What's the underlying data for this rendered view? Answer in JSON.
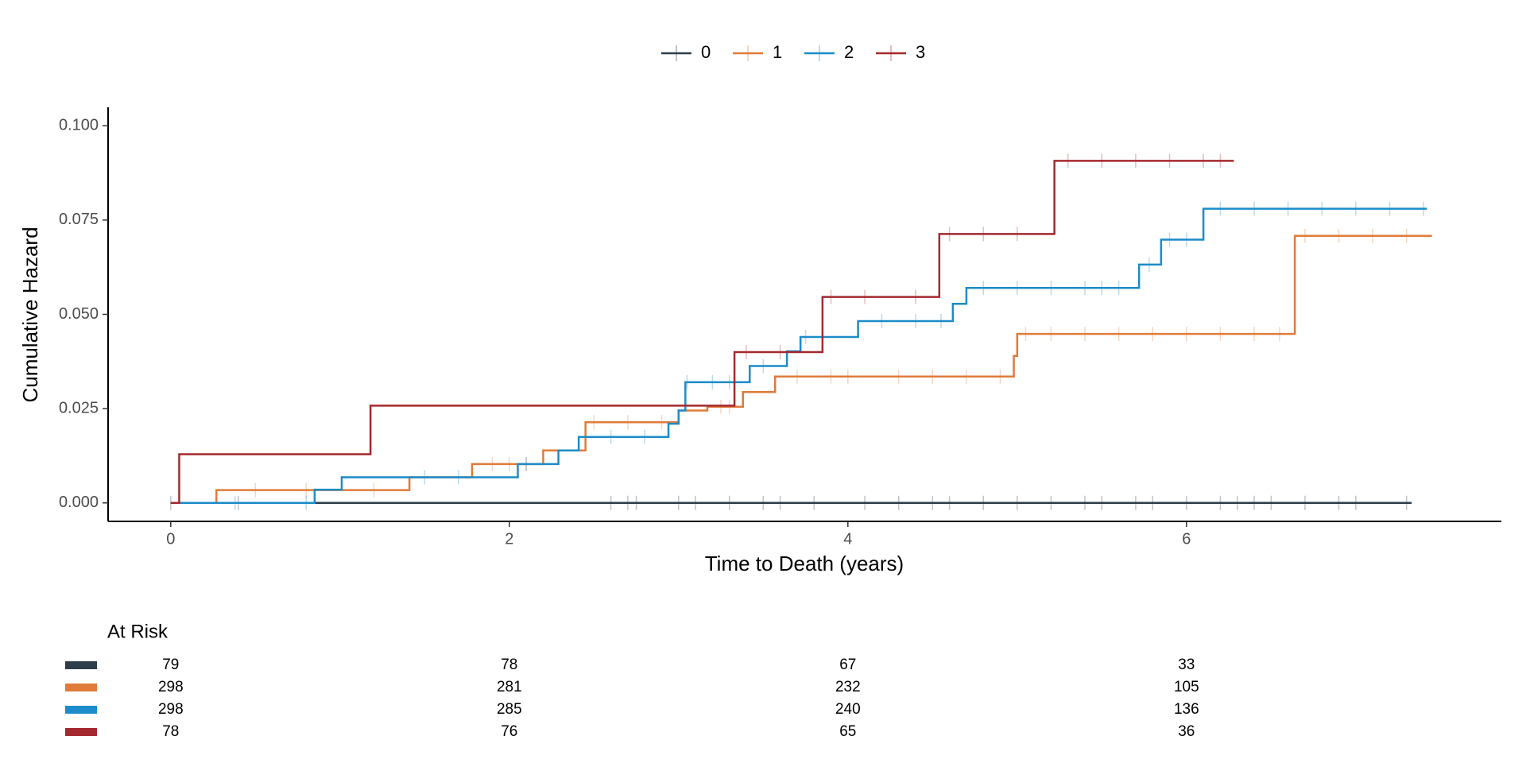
{
  "chart_data": {
    "type": "step",
    "xlabel": "Time to Death (years)",
    "ylabel": "Cumulative Hazard",
    "xlim": [
      -0.37,
      7.86
    ],
    "ylim": [
      -0.0049,
      0.1049
    ],
    "xticks": [
      0,
      2,
      4,
      6
    ],
    "yticks": [
      {
        "value": 0,
        "label": "0.000"
      },
      {
        "value": 0.025,
        "label": "0.025"
      },
      {
        "value": 0.05,
        "label": "0.050"
      },
      {
        "value": 0.075,
        "label": "0.075"
      },
      {
        "value": 0.1,
        "label": "0.100"
      }
    ],
    "legend_position": "top",
    "risk_title": "At Risk",
    "series": [
      {
        "name": "0",
        "color": "#2d3e4a",
        "x": [
          0,
          7.33
        ],
        "values": [
          0,
          0
        ],
        "censored": [
          0,
          0.4,
          2.6,
          2.7,
          2.75,
          3.0,
          3.1,
          3.3,
          3.5,
          3.6,
          3.8,
          4.1,
          4.3,
          4.5,
          4.6,
          4.8,
          5.0,
          5.2,
          5.4,
          5.5,
          5.7,
          5.8,
          6.0,
          6.2,
          6.3,
          6.4,
          6.5,
          6.7,
          6.9,
          7.0,
          7.3
        ],
        "at_risk": [
          79,
          78,
          67,
          33
        ]
      },
      {
        "name": "1",
        "color": "#e07b39",
        "x": [
          0,
          0.27,
          1.41,
          1.78,
          2.2,
          2.45,
          3.0,
          3.17,
          3.38,
          3.57,
          4.98,
          5.0,
          6.64,
          7.45
        ],
        "values": [
          0,
          0.0034,
          0.0068,
          0.0103,
          0.0139,
          0.0214,
          0.0245,
          0.0255,
          0.0294,
          0.0335,
          0.039,
          0.0448,
          0.0708,
          0.0708
        ],
        "censored": [
          0.5,
          0.8,
          1.2,
          1.9,
          2.0,
          2.1,
          2.5,
          2.7,
          2.9,
          3.25,
          3.3,
          3.7,
          3.9,
          4.0,
          4.3,
          4.5,
          4.7,
          4.9,
          5.05,
          5.2,
          5.4,
          5.6,
          5.8,
          6.0,
          6.2,
          6.4,
          6.55,
          6.7,
          6.9,
          7.1,
          7.3
        ],
        "at_risk": [
          298,
          281,
          232,
          105
        ]
      },
      {
        "name": "2",
        "color": "#1b8cc9",
        "x": [
          0,
          0.85,
          1.01,
          2.05,
          2.29,
          2.41,
          2.94,
          3.0,
          3.04,
          3.42,
          3.64,
          3.72,
          4.06,
          4.62,
          4.7,
          5.72,
          5.85,
          6.1,
          7.42
        ],
        "values": [
          0,
          0.0035,
          0.0068,
          0.0103,
          0.0139,
          0.0175,
          0.021,
          0.0245,
          0.032,
          0.0363,
          0.0402,
          0.044,
          0.0482,
          0.0528,
          0.057,
          0.0632,
          0.0698,
          0.078,
          0.078
        ],
        "censored": [
          0.38,
          0.8,
          1.5,
          1.7,
          2.1,
          2.6,
          2.8,
          3.05,
          3.2,
          3.3,
          3.5,
          3.75,
          4.2,
          4.4,
          4.55,
          4.8,
          5.0,
          5.2,
          5.4,
          5.5,
          5.6,
          5.78,
          5.9,
          6.0,
          6.2,
          6.4,
          6.6,
          6.8,
          7.0,
          7.2,
          7.4
        ],
        "at_risk": [
          298,
          285,
          240,
          136
        ]
      },
      {
        "name": "3",
        "color": "#a4292e",
        "x": [
          0,
          0.05,
          1.18,
          3.33,
          3.85,
          4.54,
          5.22,
          6.28
        ],
        "values": [
          0,
          0.0129,
          0.0258,
          0.04,
          0.0546,
          0.0713,
          0.0907,
          0.0907
        ],
        "censored": [
          3.4,
          3.6,
          3.9,
          4.1,
          4.4,
          4.6,
          4.8,
          5.0,
          5.3,
          5.5,
          5.7,
          5.9,
          6.1,
          6.2
        ],
        "at_risk": [
          78,
          76,
          65,
          36
        ]
      }
    ]
  }
}
